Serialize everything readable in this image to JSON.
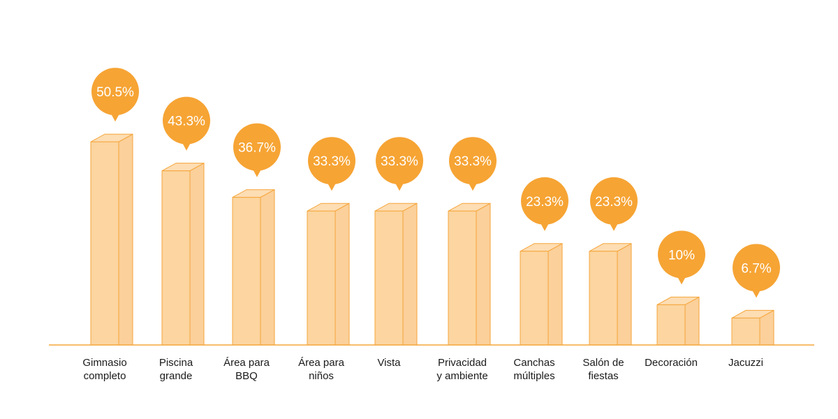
{
  "chart_data": {
    "type": "bar",
    "categories": [
      [
        "Gimnasio",
        "completo"
      ],
      [
        "Piscina",
        "grande"
      ],
      [
        "Área para",
        "BBQ"
      ],
      [
        "Área para",
        "niños"
      ],
      [
        "Vista"
      ],
      [
        "Privacidad",
        "y ambiente"
      ],
      [
        "Canchas",
        "múltiples"
      ],
      [
        "Salón de",
        "fiestas"
      ],
      [
        "Decoración"
      ],
      [
        "Jacuzzi"
      ]
    ],
    "values": [
      50.5,
      43.3,
      36.7,
      33.3,
      33.3,
      33.3,
      23.3,
      23.3,
      10,
      6.7
    ],
    "value_labels": [
      "50.5%",
      "43.3%",
      "36.7%",
      "33.3%",
      "33.3%",
      "33.3%",
      "23.3%",
      "23.3%",
      "10%",
      "6.7%"
    ],
    "title": "",
    "xlabel": "",
    "ylabel": "",
    "grid": false,
    "legend": "none",
    "colors": {
      "bar_fill": "#FCD5A0",
      "bar_side": "#FBD09A",
      "bar_top": "#FDDDB3",
      "bar_stroke": "#F5A53A",
      "bubble": "#F6A434",
      "bubble_text": "#FFFFFF",
      "baseline": "#F5A53A",
      "label_text": "#1a1a1a"
    }
  }
}
